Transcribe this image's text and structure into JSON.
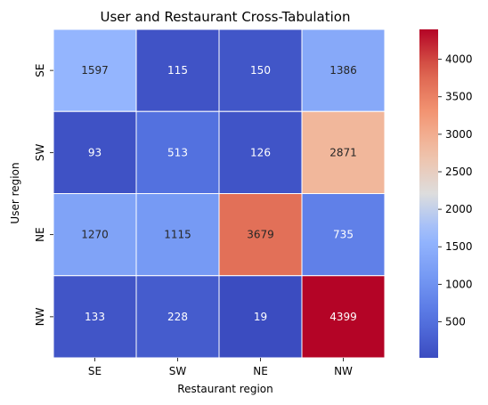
{
  "chart_data": {
    "type": "heatmap",
    "title": "User and Restaurant Cross-Tabulation",
    "xlabel": "Restaurant region",
    "ylabel": "User region",
    "x_categories": [
      "SE",
      "SW",
      "NE",
      "NW"
    ],
    "y_categories": [
      "SE",
      "SW",
      "NE",
      "NW"
    ],
    "values": [
      [
        1597,
        115,
        150,
        1386
      ],
      [
        93,
        513,
        126,
        2871
      ],
      [
        1270,
        1115,
        3679,
        735
      ],
      [
        133,
        228,
        19,
        4399
      ]
    ],
    "colormap": "coolwarm",
    "vmin": 19,
    "vmax": 4399,
    "colorbar_ticks": [
      500,
      1000,
      1500,
      2000,
      2500,
      3000,
      3500,
      4000
    ]
  }
}
